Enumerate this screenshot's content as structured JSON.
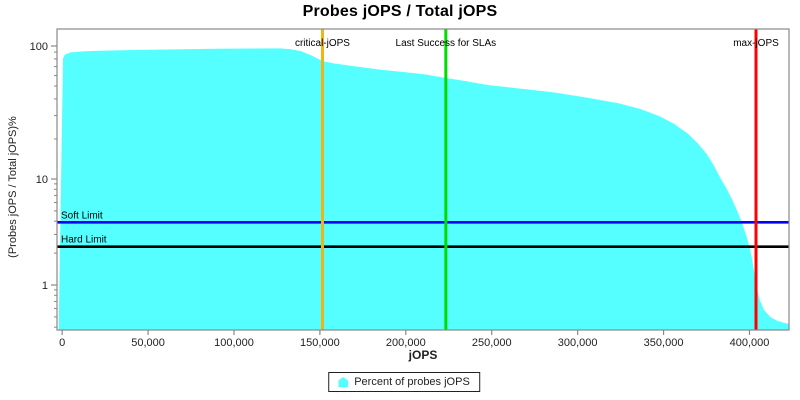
{
  "chart_data": {
    "type": "area",
    "title": "Probes jOPS / Total jOPS",
    "xlabel": "jOPS",
    "ylabel": "(Probes jOPS / Total jOPS)%",
    "grid": false,
    "log_y": true,
    "xlim": [
      -3000,
      423000
    ],
    "ylim": [
      0.38,
      134
    ],
    "legend": {
      "label": "Percent of probes jOPS",
      "position": "bottom",
      "marker_color": "#55FFFF"
    },
    "colors": {
      "area_fill": "#55FFFF",
      "plot_border": "#888888",
      "tick": "#888888",
      "tick_label": "#222222",
      "critical_line": "#F0B414",
      "sla_line": "#00DC00",
      "max_line": "#FF0000",
      "soft_limit_line": "#0000FF",
      "hard_limit_line": "#000000"
    },
    "x_ticks": {
      "values": [
        0,
        50000,
        100000,
        150000,
        200000,
        250000,
        300000,
        350000,
        400000
      ],
      "labels": [
        "0",
        "50,000",
        "100,000",
        "150,000",
        "200,000",
        "250,000",
        "300,000",
        "350,000",
        "400,000"
      ]
    },
    "y_ticks": {
      "values": [
        100,
        10,
        1
      ],
      "labels": [
        "100",
        "10",
        "1"
      ]
    },
    "y_minor_ticks": [
      90,
      80,
      70,
      60,
      50,
      40,
      30,
      20,
      9,
      8,
      7,
      6,
      5,
      4,
      3,
      2,
      0.9,
      0.8,
      0.7,
      0.6,
      0.5,
      0.4
    ],
    "series": [
      {
        "name": "Percent of probes jOPS",
        "points": [
          [
            -2000,
            0.38
          ],
          [
            500,
            80
          ],
          [
            1500,
            86
          ],
          [
            5000,
            89.5
          ],
          [
            12000,
            91
          ],
          [
            22000,
            92
          ],
          [
            35000,
            93
          ],
          [
            51000,
            93.8
          ],
          [
            70000,
            94.6
          ],
          [
            90000,
            95.3
          ],
          [
            110000,
            95.7
          ],
          [
            127000,
            96.0
          ],
          [
            133000,
            94.5
          ],
          [
            139000,
            91.5
          ],
          [
            145000,
            85
          ],
          [
            151500,
            77
          ],
          [
            158000,
            74
          ],
          [
            170000,
            70.5
          ],
          [
            185000,
            66.5
          ],
          [
            200000,
            63.5
          ],
          [
            212000,
            61
          ],
          [
            223300,
            57.5
          ],
          [
            235000,
            54.5
          ],
          [
            247000,
            51
          ],
          [
            262000,
            48.5
          ],
          [
            285000,
            45
          ],
          [
            305000,
            41
          ],
          [
            324000,
            37
          ],
          [
            337000,
            33.5
          ],
          [
            348000,
            29.5
          ],
          [
            356000,
            26
          ],
          [
            364000,
            22
          ],
          [
            370000,
            18.5
          ],
          [
            375000,
            15.5
          ],
          [
            379000,
            12.8
          ],
          [
            383000,
            10.2
          ],
          [
            386500,
            8.2
          ],
          [
            389500,
            6.6
          ],
          [
            392000,
            5.4
          ],
          [
            394500,
            4.3
          ],
          [
            396500,
            3.5
          ],
          [
            398500,
            2.8
          ],
          [
            400000,
            2.3
          ],
          [
            401500,
            1.75
          ],
          [
            403000,
            1.25
          ],
          [
            404500,
            0.92
          ],
          [
            406000,
            0.72
          ],
          [
            408500,
            0.58
          ],
          [
            412000,
            0.5
          ],
          [
            416000,
            0.46
          ],
          [
            420000,
            0.44
          ],
          [
            423000,
            0.43
          ]
        ]
      }
    ],
    "marker_lines": [
      {
        "label": "critical-jOPS",
        "x": 151500,
        "color": "#F0B414"
      },
      {
        "label": "Last Success for SLAs",
        "x": 223300,
        "color": "#00DC00"
      },
      {
        "label": "max-jOPS",
        "x": 403800,
        "color": "#FF0000"
      }
    ],
    "limit_lines": [
      {
        "label": "Soft Limit",
        "y": 3.9,
        "color": "#0000FF"
      },
      {
        "label": "Hard Limit",
        "y": 2.3,
        "color": "#000000"
      }
    ]
  }
}
